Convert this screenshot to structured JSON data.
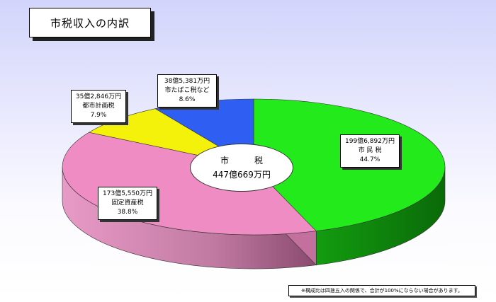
{
  "title": "市税収入の内訳",
  "center": {
    "line1": "市　税",
    "line2": "447億669万円"
  },
  "footnote": "※構成比は四捨五入の関係で、合計が100%にならない場合があります。",
  "chart_data": {
    "type": "pie",
    "style": "3d",
    "title": "市税収入の内訳",
    "total_label": "447億669万円",
    "slices": [
      {
        "name": "市 民 税",
        "amount": "199億6,892万円",
        "percent": 44.7,
        "percent_label": "44.7%",
        "color": "#22ea1b",
        "side_color": "#0f8a0c"
      },
      {
        "name": "固定資産税",
        "amount": "173億5,550万円",
        "percent": 38.8,
        "percent_label": "38.8%",
        "color": "#f08cc4",
        "side_color": "#c4709e"
      },
      {
        "name": "都市計画税",
        "amount": "35億2,846万円",
        "percent": 7.9,
        "percent_label": "7.9%",
        "color": "#f4f20a",
        "side_color": "#a8a600"
      },
      {
        "name": "市たばこ税など",
        "amount": "38億5,381万円",
        "percent": 8.6,
        "percent_label": "8.6%",
        "color": "#2e5ff2",
        "side_color": "#1c3aa0"
      }
    ]
  }
}
